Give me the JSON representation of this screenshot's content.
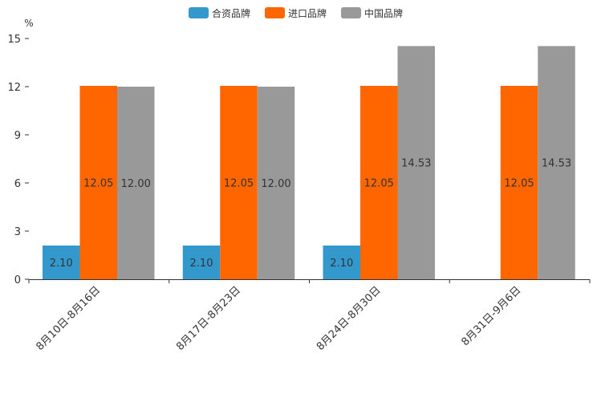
{
  "chart_data": {
    "type": "bar",
    "title": "",
    "xlabel": "",
    "ylabel": "%",
    "ylim": [
      0,
      15
    ],
    "yticks": [
      0,
      3,
      6,
      9,
      12,
      15
    ],
    "categories": [
      "8月10日-8月16日",
      "8月17日-8月23日",
      "8月24日-8月30日",
      "8月31日-9月6日"
    ],
    "series": [
      {
        "name": "合资品牌",
        "color": "#3399CC",
        "values": [
          2.1,
          2.1,
          2.1,
          null
        ],
        "labels": [
          "2.10",
          "2.10",
          "2.10",
          ""
        ]
      },
      {
        "name": "进口品牌",
        "color": "#FF6600",
        "values": [
          12.05,
          12.05,
          12.05,
          12.05
        ],
        "labels": [
          "12.05",
          "12.05",
          "12.05",
          "12.05"
        ]
      },
      {
        "name": "中国品牌",
        "color": "#999999",
        "values": [
          12.0,
          12.0,
          14.53,
          14.53
        ],
        "labels": [
          "12.00",
          "12.00",
          "14.53",
          "14.53"
        ]
      }
    ],
    "legend_position": "top-center"
  }
}
